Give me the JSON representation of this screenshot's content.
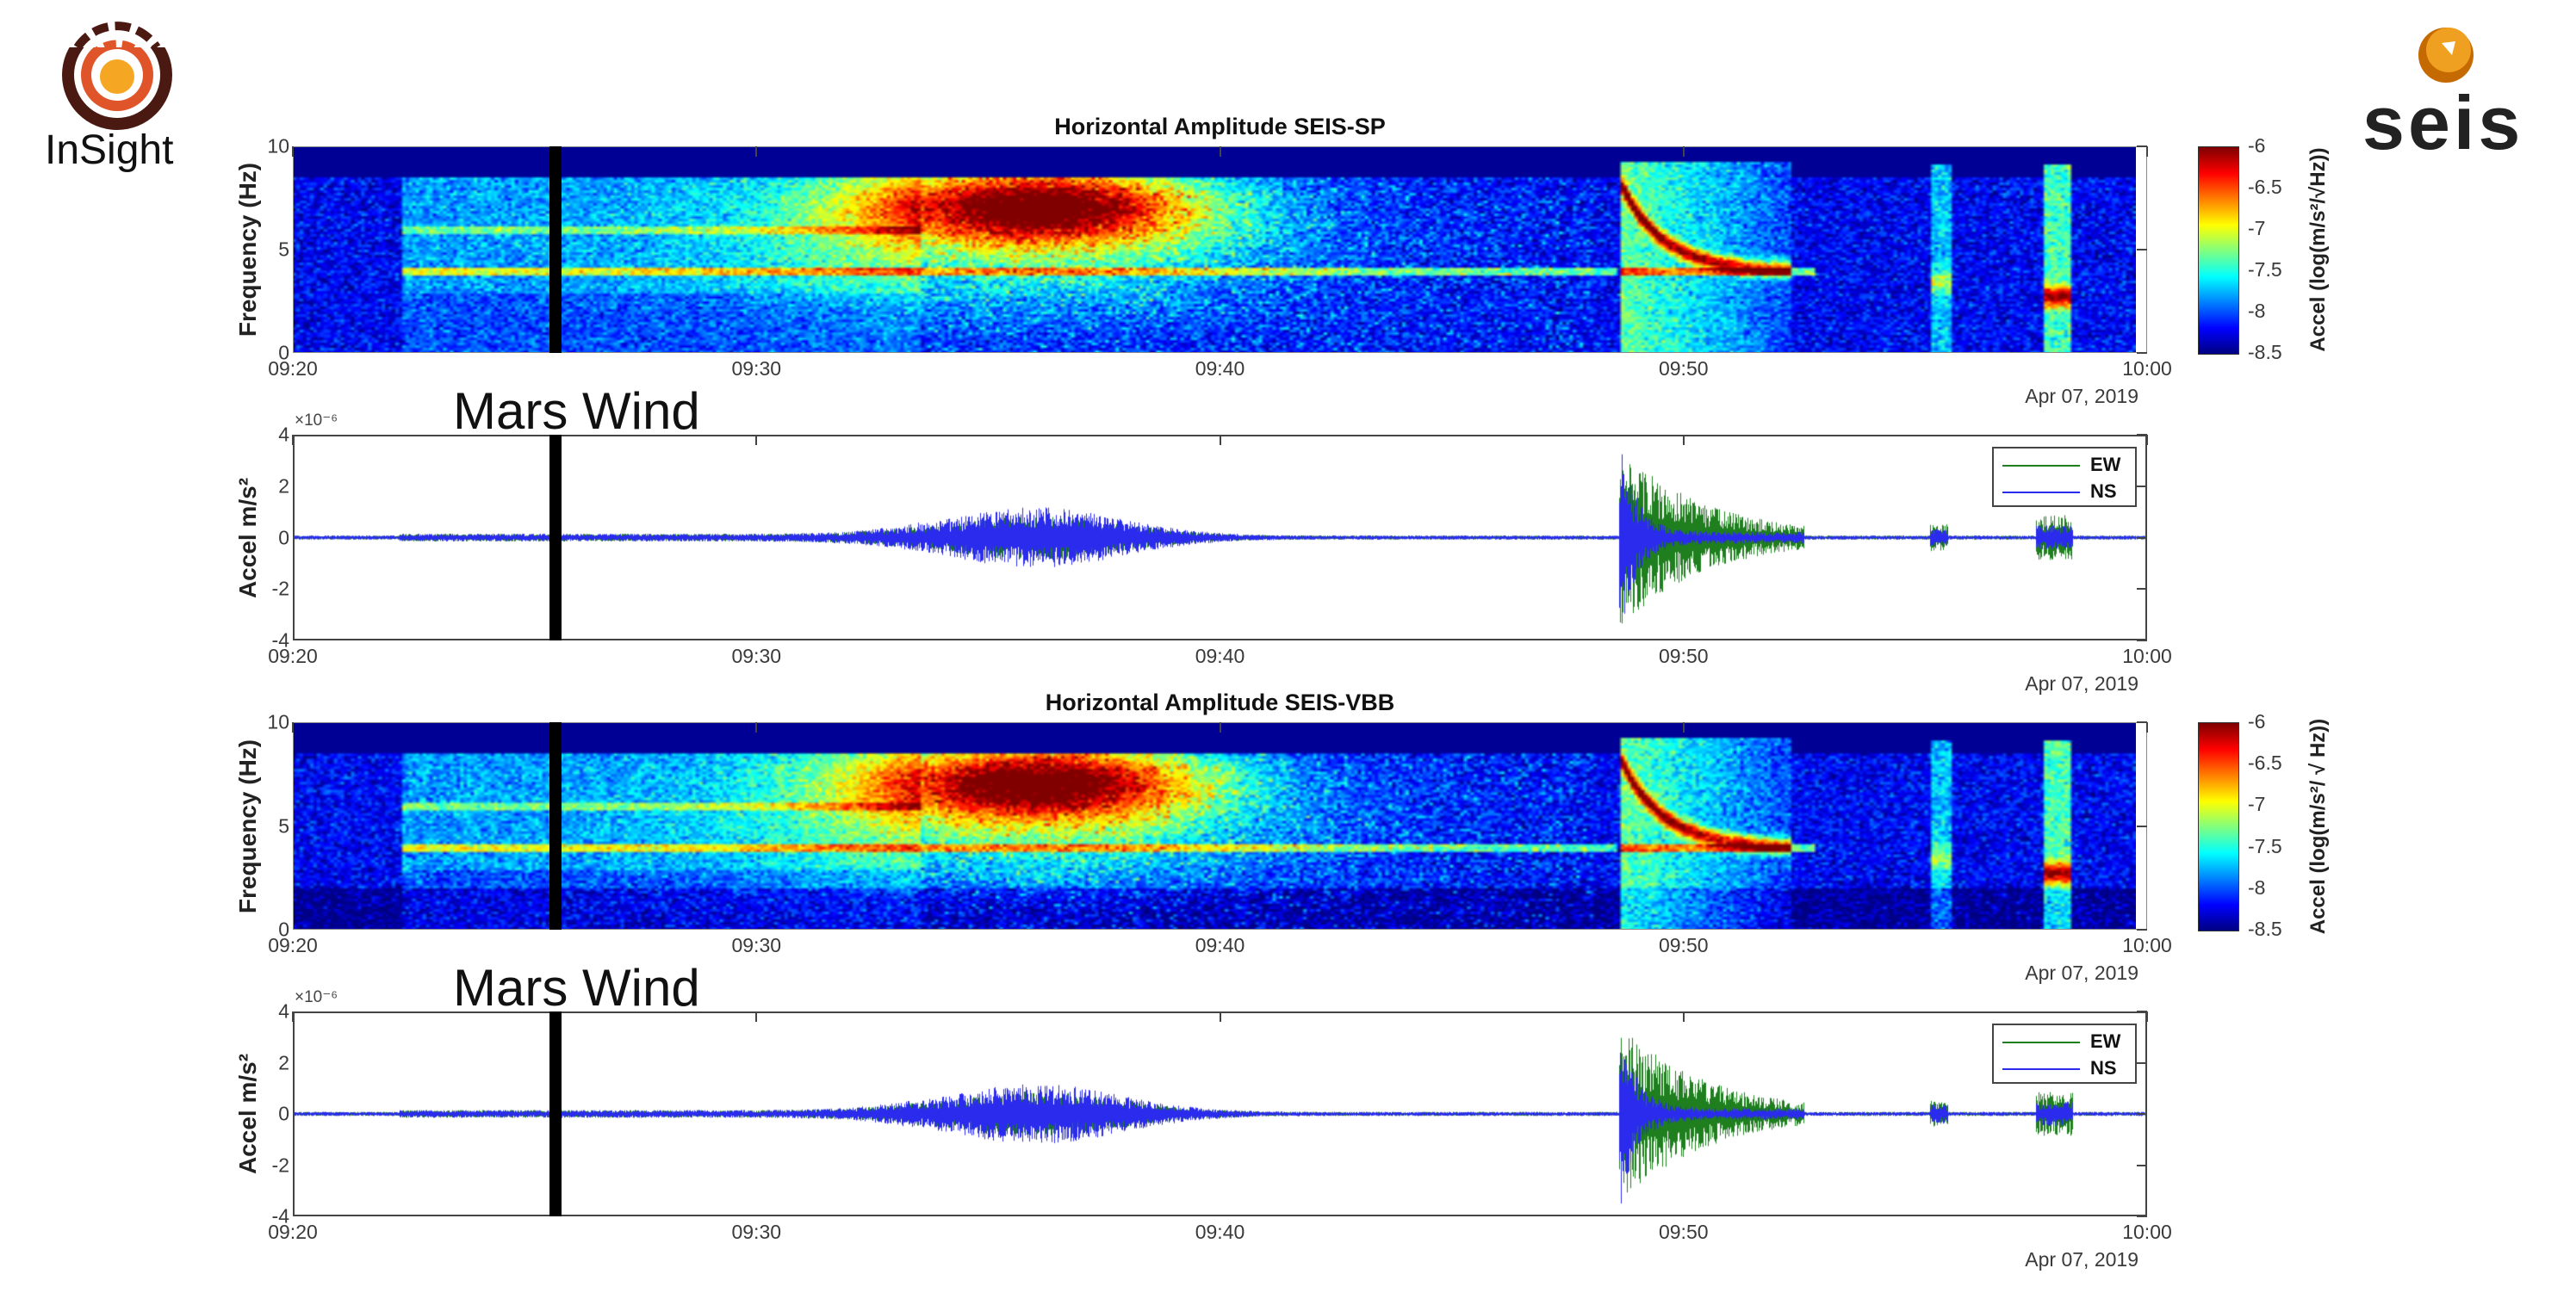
{
  "logos": {
    "left": {
      "text": "InSight",
      "colors": [
        "#4a1a12",
        "#e0542a",
        "#f5a623"
      ]
    },
    "right": {
      "text": "SEIS",
      "colors": [
        "#f0a020",
        "#c56a00",
        "#222222"
      ]
    }
  },
  "chart_data": [
    {
      "type": "heatmap",
      "title": "Horizontal Amplitude SEIS-SP",
      "ylabel": "Frequency (Hz)",
      "ylim": [
        0,
        10
      ],
      "yticks": [
        "0",
        "5",
        "10"
      ],
      "xlim": [
        "09:20",
        "10:00"
      ],
      "xticks": [
        "09:20",
        "09:30",
        "09:40",
        "09:50",
        "10:00"
      ],
      "date_label": "Apr 07, 2019",
      "colorbar": {
        "label": "Accel (log(m/s²/√Hz))",
        "range": [
          -8.5,
          -6
        ],
        "ticks": [
          "-6",
          "-6.5",
          "-7",
          "-7.5",
          "-8",
          "-8.5"
        ],
        "colormap": "jet"
      },
      "marker_time": "09:25:40"
    },
    {
      "type": "line",
      "annotation": "Mars Wind",
      "ylabel": "Accel m/s²",
      "y_exponent": "×10⁻⁶",
      "ylim": [
        -4,
        4
      ],
      "yticks": [
        "4",
        "2",
        "0",
        "-2",
        "-4"
      ],
      "xlim": [
        "09:20",
        "10:00"
      ],
      "xticks": [
        "09:20",
        "09:30",
        "09:40",
        "09:50",
        "10:00"
      ],
      "date_label": "Apr 07, 2019",
      "legend_position": "top-right",
      "series": [
        {
          "name": "EW",
          "color": "#1f7f1f"
        },
        {
          "name": "NS",
          "color": "#2b2bee"
        }
      ],
      "marker_time": "09:25:40"
    },
    {
      "type": "heatmap",
      "title": "Horizontal Amplitude SEIS-VBB",
      "ylabel": "Frequency (Hz)",
      "ylim": [
        0,
        10
      ],
      "yticks": [
        "0",
        "5",
        "10"
      ],
      "xlim": [
        "09:20",
        "10:00"
      ],
      "xticks": [
        "09:20",
        "09:30",
        "09:40",
        "09:50",
        "10:00"
      ],
      "date_label": "Apr 07, 2019",
      "colorbar": {
        "label": "Accel (log(m/s²/ √ Hz))",
        "range": [
          -8.5,
          -6
        ],
        "ticks": [
          "-6",
          "-6.5",
          "-7",
          "-7.5",
          "-8",
          "-8.5"
        ],
        "colormap": "jet"
      },
      "marker_time": "09:25:40"
    },
    {
      "type": "line",
      "annotation": "Mars Wind",
      "ylabel": "Accel m/s²",
      "y_exponent": "×10⁻⁶",
      "ylim": [
        -4,
        4
      ],
      "yticks": [
        "4",
        "2",
        "0",
        "-2",
        "-4"
      ],
      "xlim": [
        "09:20",
        "10:00"
      ],
      "xticks": [
        "09:20",
        "09:30",
        "09:40",
        "09:50",
        "10:00"
      ],
      "date_label": "Apr 07, 2019",
      "legend_position": "top-right",
      "series": [
        {
          "name": "EW",
          "color": "#1f7f1f"
        },
        {
          "name": "NS",
          "color": "#2b2bee"
        }
      ],
      "marker_time": "09:25:40"
    }
  ]
}
